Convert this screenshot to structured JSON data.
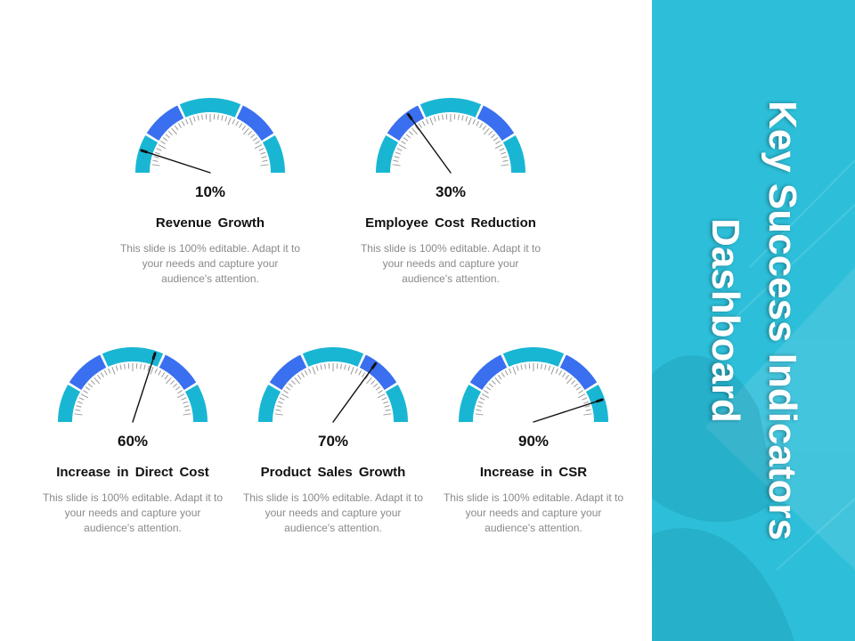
{
  "panel": {
    "title_line1": "Key Success Indicators",
    "title_line2": "Dashboard",
    "color": "#2dbfd9"
  },
  "colors": {
    "cyan": "#19b6d4",
    "blue": "#3a6ff0",
    "needle": "#111111"
  },
  "gauges": [
    {
      "value_label": "10%",
      "value": 0.1,
      "label": "Revenue Growth",
      "description": "This slide is 100% editable. Adapt it to your needs and capture your audience's attention."
    },
    {
      "value_label": "30%",
      "value": 0.3,
      "label": "Employee Cost Reduction",
      "description": "This slide is 100% editable. Adapt it to your needs and capture your audience's attention."
    },
    {
      "value_label": "60%",
      "value": 0.6,
      "label": "Increase in Direct Cost",
      "description": "This slide is 100% editable. Adapt it to your needs and capture your audience's attention."
    },
    {
      "value_label": "70%",
      "value": 0.7,
      "label": "Product Sales Growth",
      "description": "This slide is 100% editable. Adapt it to your needs and capture your audience's attention."
    },
    {
      "value_label": "90%",
      "value": 0.9,
      "label": "Increase in CSR",
      "description": "This slide is 100% editable. Adapt it to your needs and capture your audience's attention."
    }
  ]
}
